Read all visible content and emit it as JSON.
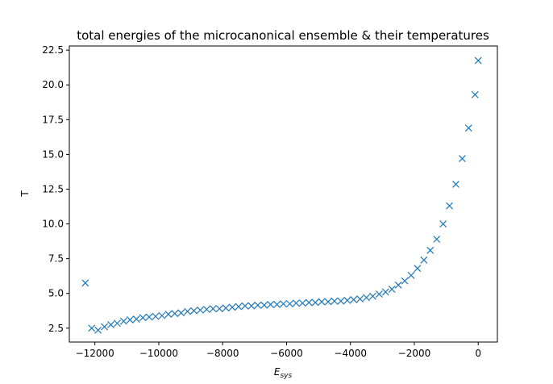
{
  "chart_data": {
    "type": "scatter",
    "title": "total energies of the microcanonical ensemble & their temperatures",
    "xlabel_main": "E",
    "xlabel_sub": "sys",
    "ylabel": "T",
    "xlim": [
      -12800,
      600
    ],
    "ylim": [
      1.5,
      22.8
    ],
    "xticks": [
      -12000,
      -10000,
      -8000,
      -6000,
      -4000,
      -2000,
      0
    ],
    "xtick_labels": [
      "−12000",
      "−10000",
      "−8000",
      "−6000",
      "−4000",
      "−2000",
      "0"
    ],
    "yticks": [
      2.5,
      5.0,
      7.5,
      10.0,
      12.5,
      15.0,
      17.5,
      20.0,
      22.5
    ],
    "ytick_labels": [
      "2.5",
      "5.0",
      "7.5",
      "10.0",
      "12.5",
      "15.0",
      "17.5",
      "20.0",
      "22.5"
    ],
    "grid": false,
    "marker": "x",
    "color": "#1f77b4",
    "series": [
      {
        "x": [
          -12300,
          -12100,
          -11900,
          -11700,
          -11500,
          -11300,
          -11100,
          -10900,
          -10700,
          -10500,
          -10300,
          -10100,
          -9900,
          -9700,
          -9500,
          -9300,
          -9100,
          -8900,
          -8700,
          -8500,
          -8300,
          -8100,
          -7900,
          -7700,
          -7500,
          -7300,
          -7100,
          -6900,
          -6700,
          -6500,
          -6300,
          -6100,
          -5900,
          -5700,
          -5500,
          -5300,
          -5100,
          -4900,
          -4700,
          -4500,
          -4300,
          -4100,
          -3900,
          -3700,
          -3500,
          -3300,
          -3100,
          -2900,
          -2700,
          -2500,
          -2300,
          -2100,
          -1900,
          -1700,
          -1500,
          -1300,
          -1100,
          -900,
          -700,
          -500,
          -300,
          -100,
          0
        ],
        "y": [
          5.75,
          2.5,
          2.35,
          2.6,
          2.75,
          2.85,
          3.0,
          3.1,
          3.15,
          3.25,
          3.3,
          3.35,
          3.4,
          3.5,
          3.55,
          3.6,
          3.7,
          3.75,
          3.8,
          3.85,
          3.9,
          3.9,
          3.95,
          4.0,
          4.05,
          4.1,
          4.1,
          4.15,
          4.15,
          4.2,
          4.2,
          4.25,
          4.25,
          4.3,
          4.3,
          4.35,
          4.35,
          4.4,
          4.4,
          4.45,
          4.45,
          4.5,
          4.55,
          4.6,
          4.7,
          4.8,
          4.95,
          5.1,
          5.3,
          5.6,
          5.9,
          6.3,
          6.8,
          7.4,
          8.1,
          8.9,
          10.0,
          11.3,
          12.85,
          14.7,
          16.9,
          19.3,
          21.75
        ]
      }
    ]
  }
}
